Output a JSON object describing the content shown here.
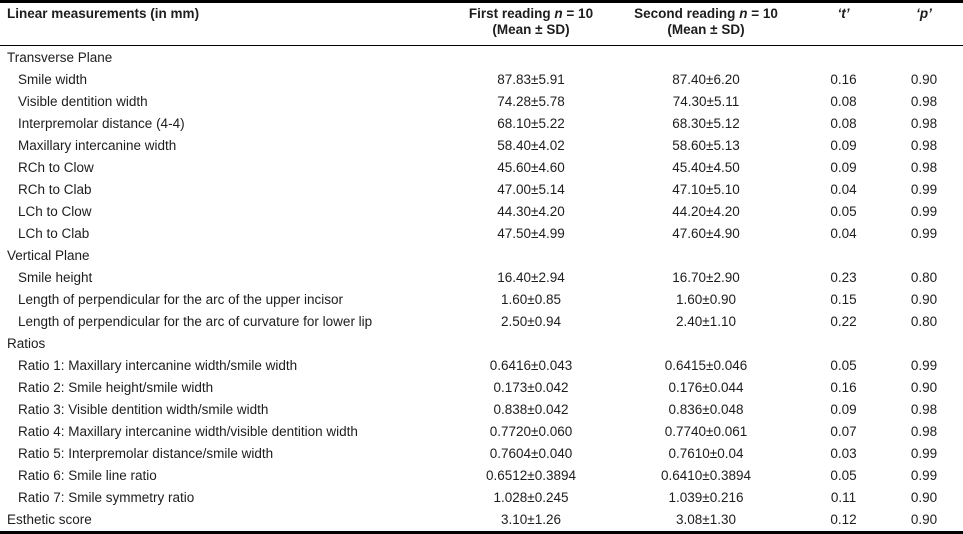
{
  "header": {
    "label": "Linear measurements (in mm)",
    "first": {
      "prefix": "First reading ",
      "n": "n",
      "suffix": " = 10",
      "line2": "(Mean ± SD)"
    },
    "second": {
      "prefix": "Second reading ",
      "n": "n",
      "suffix": " = 10",
      "line2": "(Mean ± SD)"
    },
    "t": "‘t’",
    "p": "‘p’"
  },
  "rows": [
    {
      "label": "Transverse Plane",
      "indent": false,
      "section": true,
      "first": "",
      "second": "",
      "t": "",
      "p": ""
    },
    {
      "label": "Smile width",
      "indent": true,
      "section": false,
      "first": "87.83±5.91",
      "second": "87.40±6.20",
      "t": "0.16",
      "p": "0.90"
    },
    {
      "label": "Visible dentition width",
      "indent": true,
      "section": false,
      "first": "74.28±5.78",
      "second": "74.30±5.11",
      "t": "0.08",
      "p": "0.98"
    },
    {
      "label": "Interpremolar distance (4-4)",
      "indent": true,
      "section": false,
      "first": "68.10±5.22",
      "second": "68.30±5.12",
      "t": "0.08",
      "p": "0.98"
    },
    {
      "label": "Maxillary intercanine width",
      "indent": true,
      "section": false,
      "first": "58.40±4.02",
      "second": "58.60±5.13",
      "t": "0.09",
      "p": "0.98"
    },
    {
      "label": "RCh to Clow",
      "indent": true,
      "section": false,
      "first": "45.60±4.60",
      "second": "45.40±4.50",
      "t": "0.09",
      "p": "0.98"
    },
    {
      "label": "RCh to Clab",
      "indent": true,
      "section": false,
      "first": "47.00±5.14",
      "second": "47.10±5.10",
      "t": "0.04",
      "p": "0.99"
    },
    {
      "label": "LCh to Clow",
      "indent": true,
      "section": false,
      "first": "44.30±4.20",
      "second": "44.20±4.20",
      "t": "0.05",
      "p": "0.99"
    },
    {
      "label": "LCh to Clab",
      "indent": true,
      "section": false,
      "first": "47.50±4.99",
      "second": "47.60±4.90",
      "t": "0.04",
      "p": "0.99"
    },
    {
      "label": "Vertical Plane",
      "indent": false,
      "section": true,
      "first": "",
      "second": "",
      "t": "",
      "p": ""
    },
    {
      "label": "Smile height",
      "indent": true,
      "section": false,
      "first": "16.40±2.94",
      "second": "16.70±2.90",
      "t": "0.23",
      "p": "0.80"
    },
    {
      "label": "Length of perpendicular for the arc of the upper incisor",
      "indent": true,
      "section": false,
      "first": "1.60±0.85",
      "second": "1.60±0.90",
      "t": "0.15",
      "p": "0.90"
    },
    {
      "label": "Length of perpendicular for the arc of curvature for lower lip",
      "indent": true,
      "section": false,
      "first": "2.50±0.94",
      "second": "2.40±1.10",
      "t": "0.22",
      "p": "0.80"
    },
    {
      "label": "Ratios",
      "indent": false,
      "section": true,
      "first": "",
      "second": "",
      "t": "",
      "p": ""
    },
    {
      "label": "Ratio 1: Maxillary intercanine width/smile width",
      "indent": true,
      "section": false,
      "first": "0.6416±0.043",
      "second": "0.6415±0.046",
      "t": "0.05",
      "p": "0.99"
    },
    {
      "label": "Ratio 2: Smile height/smile width",
      "indent": true,
      "section": false,
      "first": "0.173±0.042",
      "second": "0.176±0.044",
      "t": "0.16",
      "p": "0.90"
    },
    {
      "label": "Ratio 3: Visible dentition width/smile width",
      "indent": true,
      "section": false,
      "first": "0.838±0.042",
      "second": "0.836±0.048",
      "t": "0.09",
      "p": "0.98"
    },
    {
      "label": "Ratio 4: Maxillary intercanine width/visible dentition width",
      "indent": true,
      "section": false,
      "first": "0.7720±0.060",
      "second": "0.7740±0.061",
      "t": "0.07",
      "p": "0.98"
    },
    {
      "label": "Ratio 5: Interpremolar distance/smile width",
      "indent": true,
      "section": false,
      "first": "0.7604±0.040",
      "second": "0.7610±0.04",
      "t": "0.03",
      "p": "0.99"
    },
    {
      "label": "Ratio 6: Smile line ratio",
      "indent": true,
      "section": false,
      "first": "0.6512±0.3894",
      "second": "0.6410±0.3894",
      "t": "0.05",
      "p": "0.99"
    },
    {
      "label": "Ratio 7: Smile symmetry ratio",
      "indent": true,
      "section": false,
      "first": "1.028±0.245",
      "second": "1.039±0.216",
      "t": "0.11",
      "p": "0.90"
    },
    {
      "label": "Esthetic score",
      "indent": false,
      "section": false,
      "first": "3.10±1.26",
      "second": "3.08±1.30",
      "t": "0.12",
      "p": "0.90"
    }
  ],
  "colors": {
    "background": "#ffffff",
    "text": "#1d1d1d",
    "rule": "#000000"
  }
}
